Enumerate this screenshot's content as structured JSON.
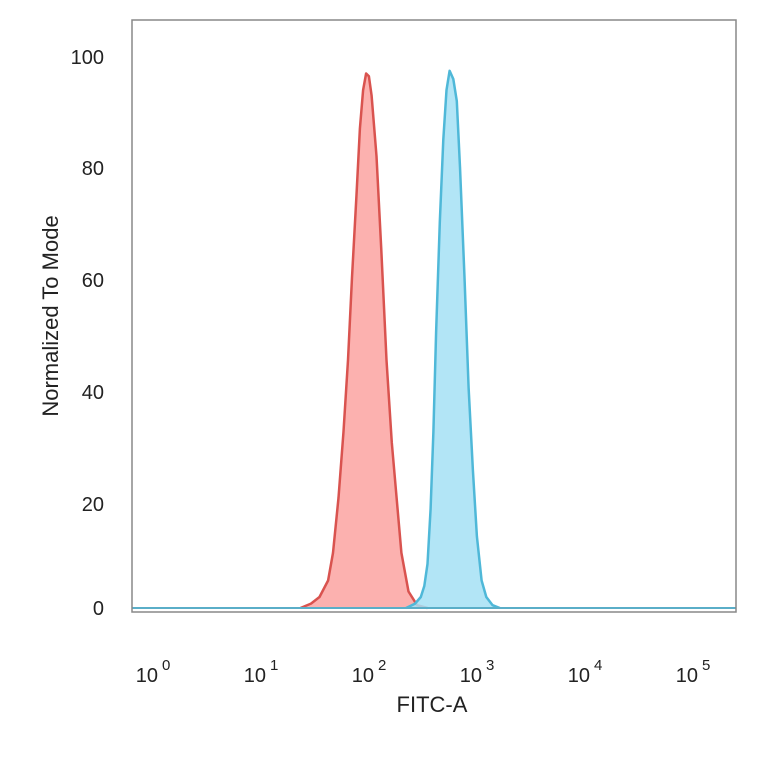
{
  "chart_data": {
    "type": "area",
    "title": "",
    "xlabel": "FITC-A",
    "ylabel": "Normalized To Mode",
    "x_scale": "log",
    "xlim": [
      0.5,
      200000
    ],
    "ylim": [
      0,
      106
    ],
    "x_ticks": [
      {
        "base": "10",
        "exp": "0",
        "value": 1
      },
      {
        "base": "10",
        "exp": "1",
        "value": 10
      },
      {
        "base": "10",
        "exp": "2",
        "value": 100
      },
      {
        "base": "10",
        "exp": "3",
        "value": 1000
      },
      {
        "base": "10",
        "exp": "4",
        "value": 10000
      },
      {
        "base": "10",
        "exp": "5",
        "value": 100000
      }
    ],
    "y_ticks": [
      "0",
      "20",
      "40",
      "60",
      "80",
      "100"
    ],
    "grid": false,
    "series": [
      {
        "color": "#d9534f",
        "fill": "#fba3a1",
        "points": [
          [
            20,
            0
          ],
          [
            25,
            0.8
          ],
          [
            30,
            2
          ],
          [
            36,
            5
          ],
          [
            40,
            10
          ],
          [
            45,
            20
          ],
          [
            50,
            32
          ],
          [
            55,
            45
          ],
          [
            60,
            60
          ],
          [
            66,
            75
          ],
          [
            71,
            87
          ],
          [
            76,
            94
          ],
          [
            81,
            97
          ],
          [
            86,
            96.5
          ],
          [
            91,
            93
          ],
          [
            101,
            82
          ],
          [
            112,
            65
          ],
          [
            125,
            45
          ],
          [
            140,
            30
          ],
          [
            155,
            20
          ],
          [
            172,
            10
          ],
          [
            200,
            3
          ],
          [
            240,
            0.5
          ],
          [
            300,
            0
          ]
        ]
      },
      {
        "color": "#4fb8d8",
        "fill": "#a5e0f5",
        "points": [
          [
            190,
            0
          ],
          [
            230,
            0.8
          ],
          [
            260,
            2
          ],
          [
            280,
            4
          ],
          [
            300,
            8
          ],
          [
            320,
            18
          ],
          [
            340,
            32
          ],
          [
            360,
            50
          ],
          [
            390,
            70
          ],
          [
            420,
            85
          ],
          [
            450,
            94
          ],
          [
            480,
            97.5
          ],
          [
            520,
            96
          ],
          [
            560,
            92
          ],
          [
            600,
            80
          ],
          [
            660,
            60
          ],
          [
            720,
            40
          ],
          [
            790,
            25
          ],
          [
            860,
            13
          ],
          [
            950,
            5
          ],
          [
            1050,
            2
          ],
          [
            1200,
            0.5
          ],
          [
            1400,
            0
          ]
        ]
      }
    ]
  }
}
